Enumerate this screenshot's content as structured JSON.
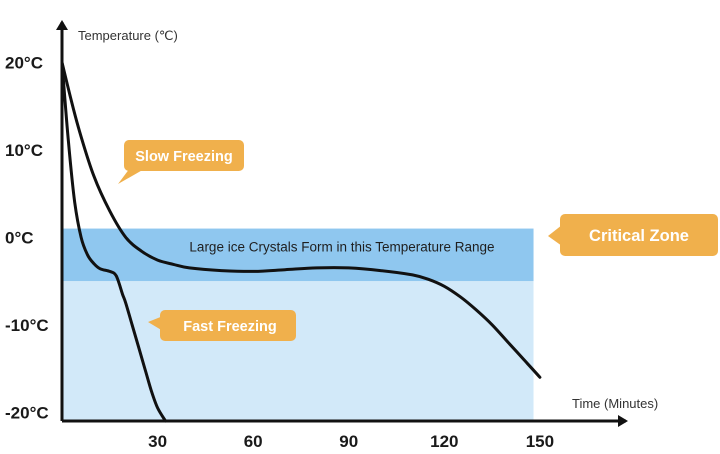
{
  "chart_data": {
    "type": "line",
    "ylabel": "Temperature (℃)",
    "xlabel": "Time (Minutes)",
    "x_ticks": [
      30,
      60,
      90,
      120,
      150
    ],
    "y_ticks": [
      {
        "value": 20,
        "label": "20°C"
      },
      {
        "value": 10,
        "label": "10°C"
      },
      {
        "value": 0,
        "label": "0°C"
      },
      {
        "value": -10,
        "label": "-10°C"
      },
      {
        "value": -20,
        "label": "-20°C"
      }
    ],
    "xlim": [
      0,
      172
    ],
    "ylim": [
      -21,
      20.5
    ],
    "grid": false,
    "colors": {
      "line": "#111111",
      "axis": "#111111",
      "critical_band": "#8fc7ef",
      "cold_region": "#d2e9f9",
      "callout": "#f0b04c"
    },
    "series": [
      {
        "name": "Slow Freezing",
        "x": [
          0,
          3,
          6,
          10,
          15,
          20,
          25,
          30,
          35,
          40,
          50,
          60,
          70,
          80,
          90,
          100,
          110,
          115,
          120,
          125,
          130,
          135,
          140,
          145,
          150
        ],
        "y": [
          20,
          15.5,
          11.5,
          7,
          3,
          0,
          -1.6,
          -2.6,
          -3.1,
          -3.5,
          -3.8,
          -3.9,
          -3.7,
          -3.5,
          -3.5,
          -3.8,
          -4.3,
          -4.8,
          -5.6,
          -6.8,
          -8.3,
          -10,
          -12,
          -14,
          -16
        ]
      },
      {
        "name": "Fast Freezing",
        "x": [
          0,
          2,
          4,
          6,
          8,
          10,
          12,
          15,
          17,
          19,
          20,
          22,
          24,
          26,
          28,
          30,
          32.5
        ],
        "y": [
          20,
          11,
          4,
          0,
          -2,
          -3,
          -3.6,
          -3.9,
          -4.4,
          -6.5,
          -7.5,
          -10,
          -12.5,
          -15,
          -17.5,
          -19.5,
          -21
        ]
      }
    ],
    "regions": [
      {
        "name": "cold-region",
        "y_from": -21,
        "y_to": -5,
        "x_from": 0,
        "x_to": 148
      },
      {
        "name": "critical-band",
        "y_from": -5,
        "y_to": 1,
        "x_from": 0,
        "x_to": 148
      }
    ],
    "annotations": {
      "zone_text": "Large ice Crystals Form in this Temperature Range",
      "slow_callout": "Slow Freezing",
      "fast_callout": "Fast Freezing",
      "critical_callout": "Critical Zone"
    }
  }
}
